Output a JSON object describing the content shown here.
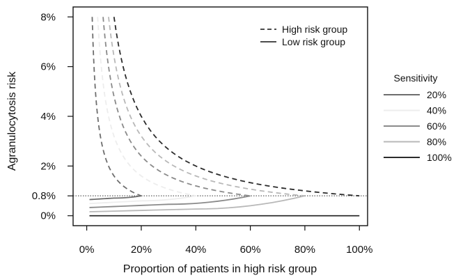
{
  "chart_data": {
    "type": "line",
    "title": "",
    "xlabel": "Proportion of patients in high risk group",
    "ylabel": "Agranulocytosis risk",
    "xlim": [
      -0.05,
      1.03
    ],
    "ylim": [
      -0.004,
      0.084
    ],
    "x_ticks": [
      0,
      0.2,
      0.4,
      0.6,
      0.8,
      1.0
    ],
    "x_tick_labels": [
      "0%",
      "20%",
      "40%",
      "60%",
      "80%",
      "100%"
    ],
    "y_ticks": [
      0,
      0.008,
      0.02,
      0.04,
      0.06,
      0.08
    ],
    "y_tick_labels": [
      "0%",
      "0.8%",
      "2%",
      "4%",
      "6%",
      "8%"
    ],
    "reference_line": {
      "y": 0.008,
      "style": "dotted"
    },
    "line_legend": {
      "position": "top-right",
      "entries": [
        {
          "label": "High risk group",
          "style": "dashed"
        },
        {
          "label": "Low risk group",
          "style": "solid"
        }
      ]
    },
    "sensitivity_legend": {
      "title": "Sensitivity",
      "position": "right-outside",
      "entries": [
        {
          "label": "20%",
          "color": "#6e6e6e"
        },
        {
          "label": "40%",
          "color": "#ededed"
        },
        {
          "label": "60%",
          "color": "#8a8a8a"
        },
        {
          "label": "80%",
          "color": "#b8b8b8"
        },
        {
          "label": "100%",
          "color": "#2b2b2b"
        }
      ]
    },
    "series": [
      {
        "sensitivity": 0.2,
        "color": "#6e6e6e",
        "high_risk": [
          [
            0.02,
            0.08
          ],
          [
            0.05,
            0.032
          ],
          [
            0.1,
            0.016
          ],
          [
            0.15,
            0.0107
          ],
          [
            0.2,
            0.008
          ]
        ],
        "low_risk": [
          [
            0.01,
            0.0065
          ],
          [
            0.1,
            0.0071
          ],
          [
            0.2,
            0.008
          ]
        ]
      },
      {
        "sensitivity": 0.4,
        "color": "#ededed",
        "high_risk": [
          [
            0.04,
            0.08
          ],
          [
            0.1,
            0.032
          ],
          [
            0.2,
            0.016
          ],
          [
            0.3,
            0.0107
          ],
          [
            0.4,
            0.008
          ]
        ],
        "low_risk": [
          [
            0.01,
            0.0049
          ],
          [
            0.2,
            0.006
          ],
          [
            0.4,
            0.008
          ]
        ]
      },
      {
        "sensitivity": 0.6,
        "color": "#8a8a8a",
        "high_risk": [
          [
            0.06,
            0.08
          ],
          [
            0.1,
            0.048
          ],
          [
            0.2,
            0.024
          ],
          [
            0.4,
            0.012
          ],
          [
            0.6,
            0.008
          ]
        ],
        "low_risk": [
          [
            0.01,
            0.0033
          ],
          [
            0.3,
            0.0046
          ],
          [
            0.6,
            0.008
          ]
        ]
      },
      {
        "sensitivity": 0.8,
        "color": "#b8b8b8",
        "high_risk": [
          [
            0.08,
            0.08
          ],
          [
            0.2,
            0.032
          ],
          [
            0.4,
            0.016
          ],
          [
            0.6,
            0.0107
          ],
          [
            0.8,
            0.008
          ]
        ],
        "low_risk": [
          [
            0.01,
            0.0016
          ],
          [
            0.4,
            0.0027
          ],
          [
            0.8,
            0.008
          ]
        ]
      },
      {
        "sensitivity": 1.0,
        "color": "#2b2b2b",
        "high_risk": [
          [
            0.1,
            0.08
          ],
          [
            0.2,
            0.04
          ],
          [
            0.4,
            0.02
          ],
          [
            0.6,
            0.0133
          ],
          [
            0.8,
            0.01
          ],
          [
            1.0,
            0.008
          ]
        ],
        "low_risk": [
          [
            0.01,
            0
          ],
          [
            0.5,
            0
          ],
          [
            1.0,
            0
          ]
        ]
      }
    ]
  }
}
